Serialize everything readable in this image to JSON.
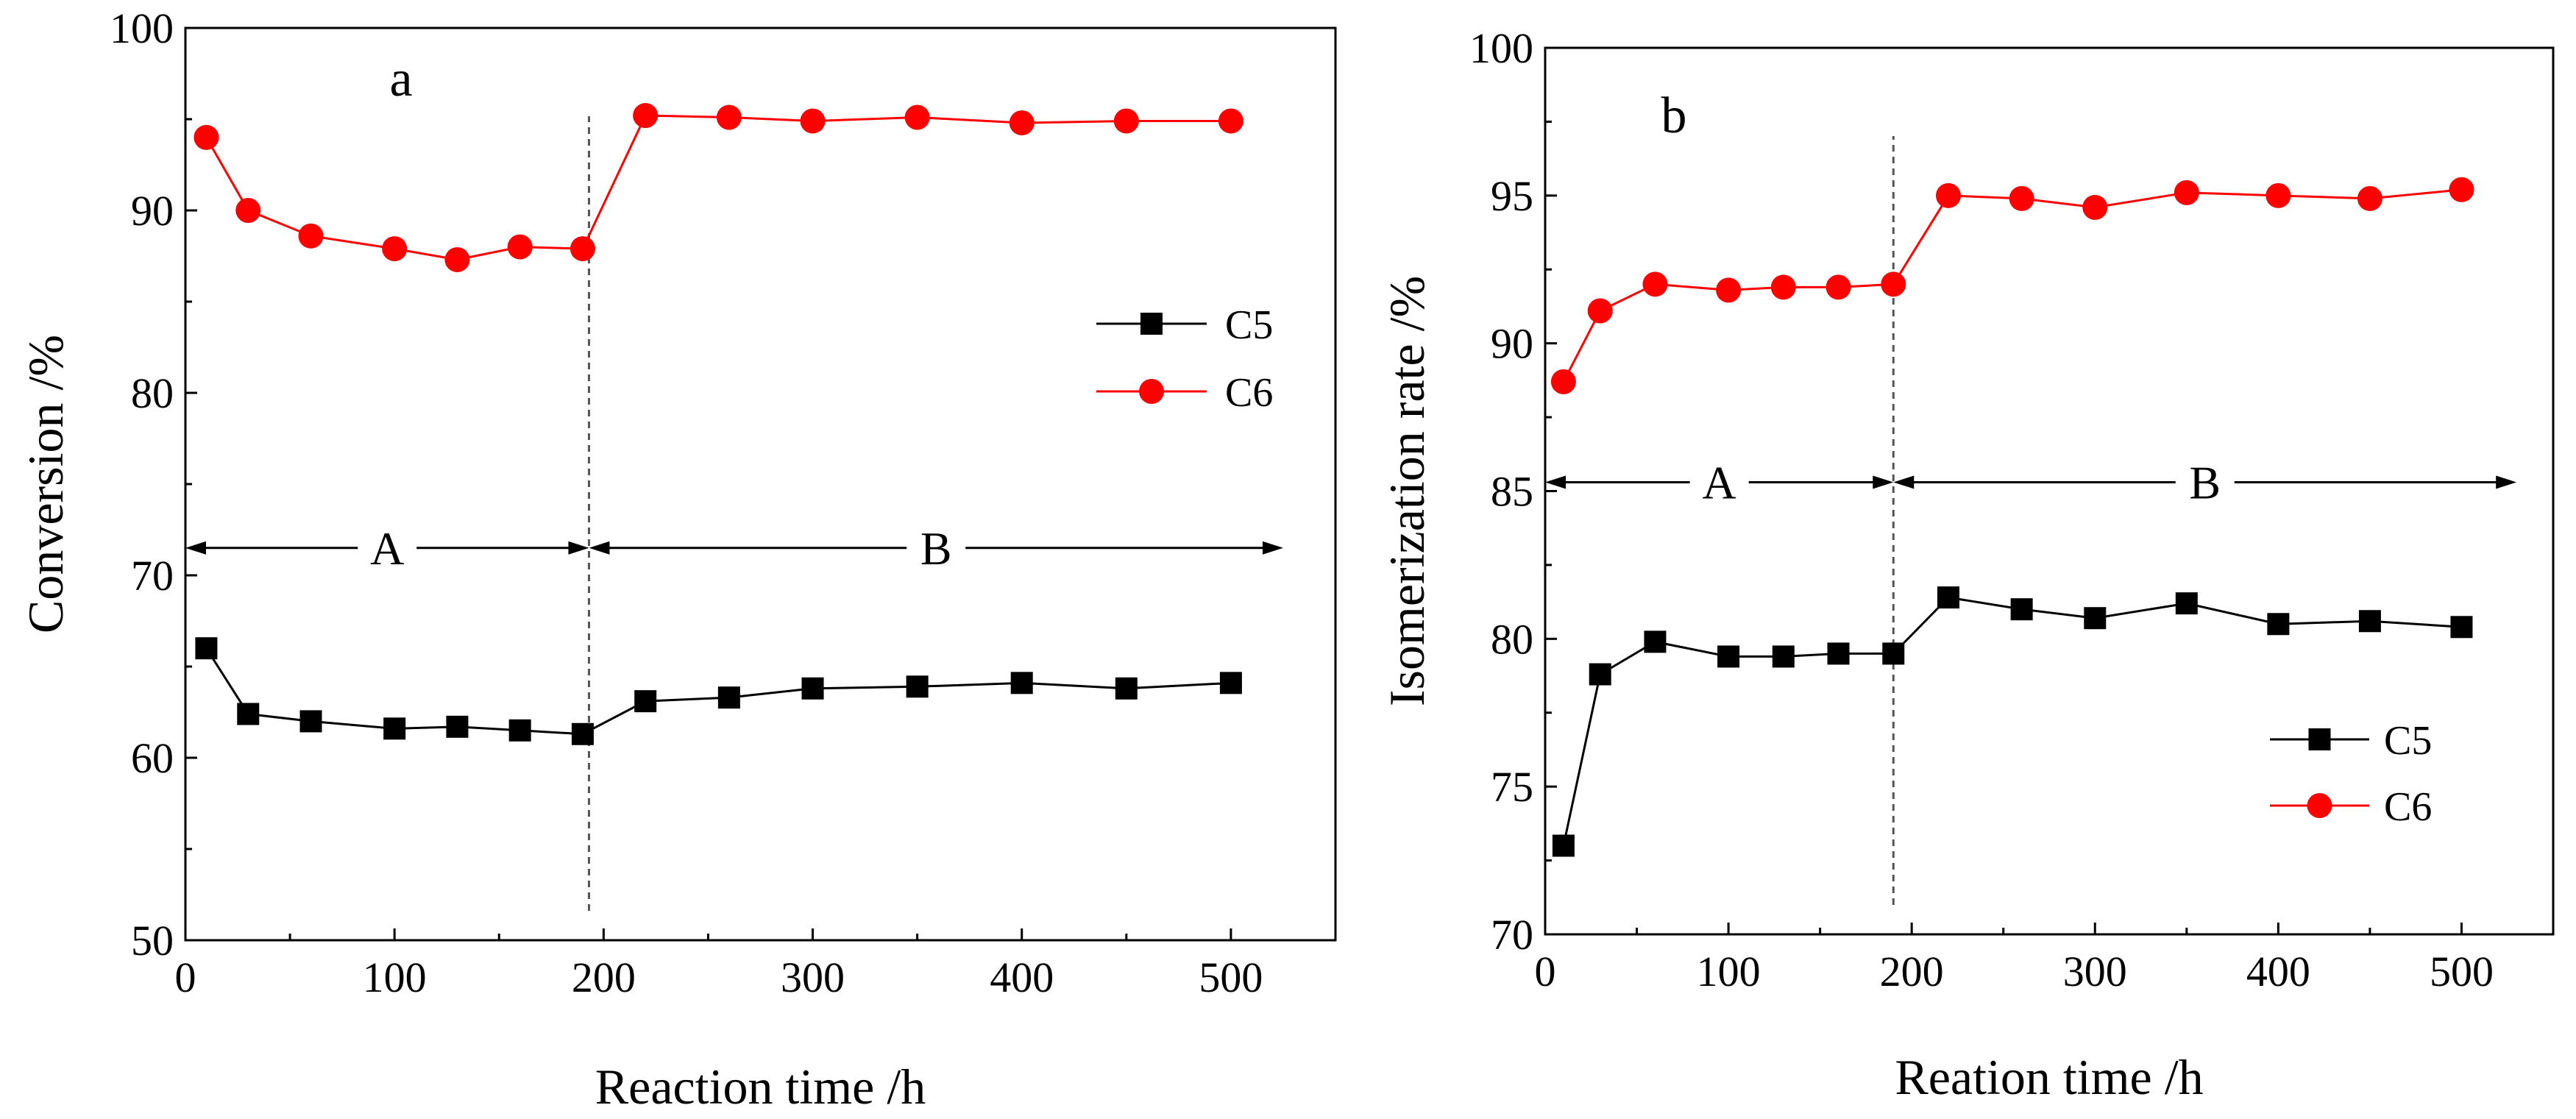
{
  "chart_data": [
    {
      "type": "line",
      "panel_label": "a",
      "title": "",
      "xlabel": "Reaction time /h",
      "ylabel": "Conversion /%",
      "xlim": [
        0,
        550
      ],
      "ylim": [
        50,
        100
      ],
      "xticks": [
        0,
        100,
        200,
        300,
        400,
        500
      ],
      "yticks": [
        50,
        60,
        70,
        80,
        90,
        100
      ],
      "legend_position": "right",
      "divider_x": 193,
      "regions": [
        {
          "label": "A",
          "from": 0,
          "to": 193
        },
        {
          "label": "B",
          "from": 193,
          "to": 525
        }
      ],
      "region_arrow_y": 71.5,
      "series": [
        {
          "name": "C5",
          "marker": "square",
          "color": "#000000",
          "x": [
            10,
            30,
            60,
            100,
            130,
            160,
            190,
            220,
            260,
            300,
            350,
            400,
            450,
            500
          ],
          "y": [
            66.0,
            62.4,
            62.0,
            61.6,
            61.7,
            61.5,
            61.3,
            63.1,
            63.3,
            63.8,
            63.9,
            64.1,
            63.8,
            64.1
          ]
        },
        {
          "name": "C6",
          "marker": "circle",
          "color": "#ff0000",
          "x": [
            10,
            30,
            60,
            100,
            130,
            160,
            190,
            220,
            260,
            300,
            350,
            400,
            450,
            500
          ],
          "y": [
            94.0,
            90.0,
            88.6,
            87.9,
            87.3,
            88.0,
            87.9,
            95.2,
            95.1,
            94.9,
            95.1,
            94.8,
            94.9,
            94.9
          ]
        }
      ]
    },
    {
      "type": "line",
      "panel_label": "b",
      "title": "",
      "xlabel": "Reation time /h",
      "ylabel": "Isomerization rate /%",
      "xlim": [
        0,
        550
      ],
      "ylim": [
        70,
        100
      ],
      "xticks": [
        0,
        100,
        200,
        300,
        400,
        500
      ],
      "yticks": [
        70,
        75,
        80,
        85,
        90,
        95,
        100
      ],
      "legend_position": "bottom-right",
      "divider_x": 190,
      "regions": [
        {
          "label": "A",
          "from": 0,
          "to": 190
        },
        {
          "label": "B",
          "from": 190,
          "to": 530
        }
      ],
      "region_arrow_y": 85.3,
      "series": [
        {
          "name": "C5",
          "marker": "square",
          "color": "#000000",
          "x": [
            10,
            30,
            60,
            100,
            130,
            160,
            190,
            220,
            260,
            300,
            350,
            400,
            450,
            500
          ],
          "y": [
            73.0,
            78.8,
            79.9,
            79.4,
            79.4,
            79.5,
            79.5,
            81.4,
            81.0,
            80.7,
            81.2,
            80.5,
            80.6,
            80.4
          ]
        },
        {
          "name": "C6",
          "marker": "circle",
          "color": "#ff0000",
          "x": [
            10,
            30,
            60,
            100,
            130,
            160,
            190,
            220,
            260,
            300,
            350,
            400,
            450,
            500
          ],
          "y": [
            88.7,
            91.1,
            92.0,
            91.8,
            91.9,
            91.9,
            92.0,
            95.0,
            94.9,
            94.6,
            95.1,
            95.0,
            94.9,
            95.2
          ]
        }
      ]
    }
  ]
}
